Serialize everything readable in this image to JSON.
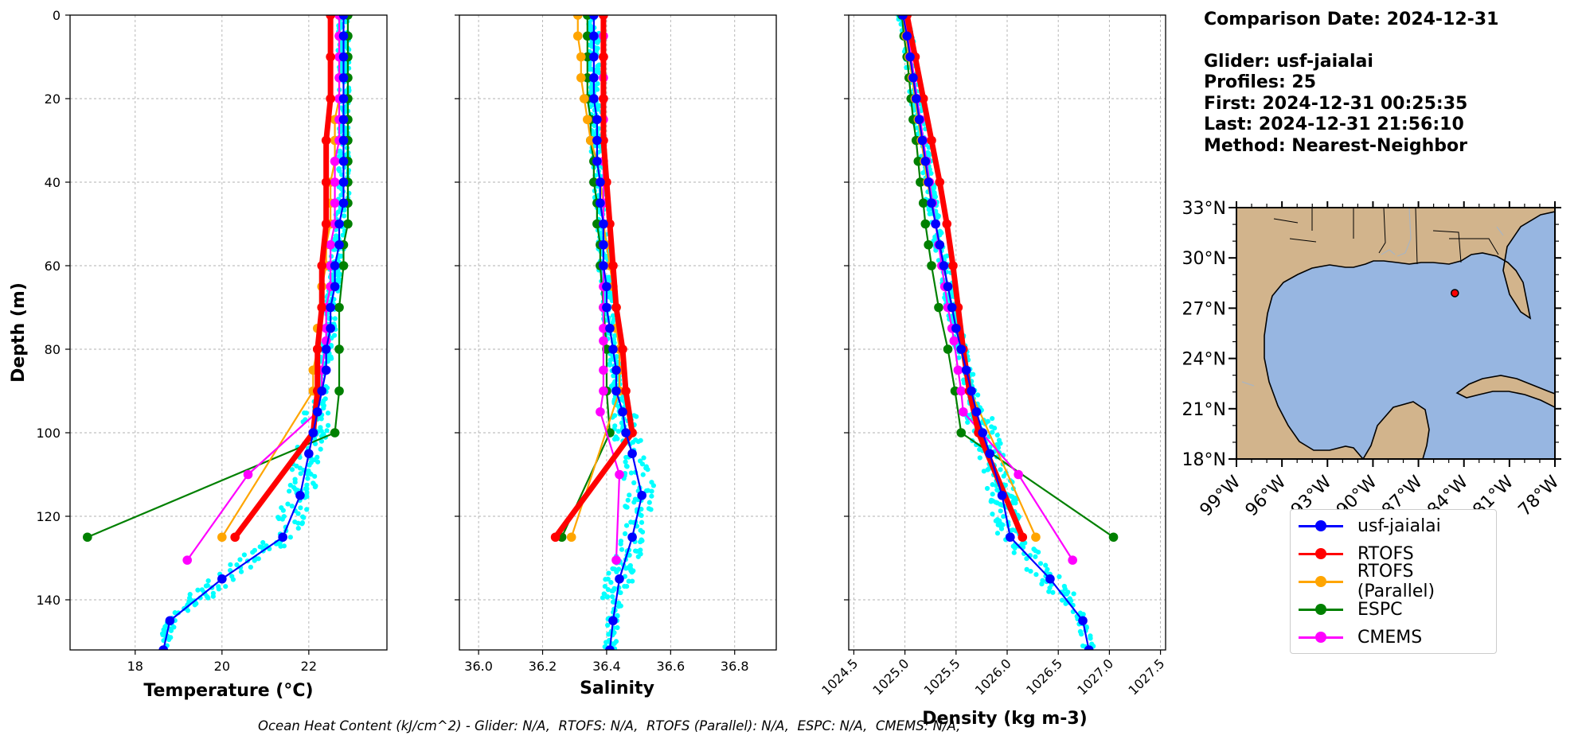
{
  "info": {
    "comparison_date": "Comparison Date: 2024-12-31",
    "glider": "Glider: usf-jaialai",
    "profiles": "Profiles: 25",
    "first": "First: 2024-12-31 00:25:35",
    "last": "Last: 2024-12-31 21:56:10",
    "method": "Method: Nearest-Neighbor"
  },
  "footnote": "Ocean Heat Content (kJ/cm^2) - Glider: N/A,  RTOFS: N/A,  RTOFS (Parallel): N/A,  ESPC: N/A,  CMEMS: N/A,",
  "colors": {
    "glider_scatter": "#00ffff",
    "usf-jaialai": "#0000ff",
    "RTOFS": "#ff0000",
    "RTOFS (Parallel)": "#ffa500",
    "ESPC": "#008000",
    "CMEMS": "#ff00ff",
    "ocean": "#97b6e1",
    "land": "#d2b48c",
    "grid": "#b0b0b0"
  },
  "legend": {
    "entries": [
      "usf-jaialai",
      "RTOFS",
      "RTOFS (Parallel)",
      "ESPC",
      "CMEMS"
    ]
  },
  "map": {
    "xticks": [
      "99°W",
      "96°W",
      "93°W",
      "90°W",
      "87°W",
      "84°W",
      "81°W",
      "78°W"
    ],
    "yticks": [
      "33°N",
      "30°N",
      "27°N",
      "24°N",
      "21°N",
      "18°N"
    ],
    "lon_range": [
      -99,
      -78
    ],
    "lat_range": [
      18,
      33
    ],
    "glider_position": {
      "lon": -84.6,
      "lat": 27.9
    }
  },
  "chart_data": [
    {
      "type": "line",
      "title": "",
      "xlabel": "Temperature (°C)",
      "ylabel": "Depth (m)",
      "xlim": [
        16.5,
        23.8
      ],
      "ylim": [
        152,
        0
      ],
      "xticks": [
        18,
        20,
        22
      ],
      "yticks": [
        0,
        20,
        40,
        60,
        80,
        100,
        120,
        140
      ],
      "grid": true,
      "series": [
        {
          "name": "usf-jaialai",
          "depth": [
            0,
            5,
            10,
            15,
            20,
            25,
            30,
            35,
            40,
            45,
            50,
            55,
            60,
            65,
            70,
            75,
            80,
            85,
            90,
            95,
            100,
            105,
            115,
            125,
            135,
            145,
            152
          ],
          "values": [
            22.8,
            22.8,
            22.8,
            22.8,
            22.8,
            22.8,
            22.8,
            22.8,
            22.8,
            22.8,
            22.7,
            22.7,
            22.6,
            22.6,
            22.5,
            22.5,
            22.4,
            22.4,
            22.3,
            22.2,
            22.1,
            22.0,
            21.8,
            21.4,
            20.0,
            18.8,
            18.65
          ]
        },
        {
          "name": "RTOFS",
          "depth": [
            0,
            10,
            20,
            30,
            40,
            50,
            60,
            70,
            80,
            90,
            100,
            125
          ],
          "values": [
            22.5,
            22.5,
            22.5,
            22.4,
            22.4,
            22.4,
            22.3,
            22.3,
            22.2,
            22.2,
            22.1,
            20.3
          ]
        },
        {
          "name": "RTOFS (Parallel)",
          "depth": [
            0,
            5,
            10,
            15,
            20,
            25,
            30,
            35,
            40,
            45,
            50,
            55,
            60,
            65,
            70,
            75,
            80,
            85,
            90,
            125
          ],
          "values": [
            22.7,
            22.7,
            22.7,
            22.7,
            22.7,
            22.6,
            22.6,
            22.6,
            22.5,
            22.5,
            22.5,
            22.4,
            22.4,
            22.3,
            22.3,
            22.2,
            22.2,
            22.1,
            22.1,
            20.0
          ]
        },
        {
          "name": "ESPC",
          "depth": [
            0,
            5,
            10,
            15,
            20,
            25,
            30,
            35,
            40,
            45,
            50,
            55,
            60,
            70,
            80,
            90,
            100,
            125
          ],
          "values": [
            22.9,
            22.9,
            22.9,
            22.9,
            22.9,
            22.9,
            22.9,
            22.9,
            22.9,
            22.9,
            22.9,
            22.8,
            22.8,
            22.7,
            22.7,
            22.7,
            22.6,
            16.9
          ]
        },
        {
          "name": "CMEMS",
          "depth": [
            0,
            5,
            10,
            15,
            20,
            25,
            30,
            35,
            40,
            45,
            50,
            55,
            60,
            65,
            70,
            75,
            78,
            85,
            90,
            95,
            110,
            130.5
          ],
          "values": [
            22.7,
            22.7,
            22.7,
            22.7,
            22.7,
            22.7,
            22.7,
            22.6,
            22.6,
            22.6,
            22.6,
            22.5,
            22.5,
            22.5,
            22.4,
            22.4,
            22.4,
            22.3,
            22.3,
            22.2,
            20.6,
            19.2
          ]
        }
      ]
    },
    {
      "type": "line",
      "title": "",
      "xlabel": "Salinity",
      "ylabel": "",
      "xlim": [
        35.94,
        36.93
      ],
      "ylim": [
        152,
        0
      ],
      "xticks": [
        36.0,
        36.2,
        36.4,
        36.6,
        36.8
      ],
      "yticks": [
        0,
        20,
        40,
        60,
        80,
        100,
        120,
        140
      ],
      "grid": true,
      "series": [
        {
          "name": "usf-jaialai",
          "depth": [
            0,
            5,
            10,
            15,
            20,
            25,
            30,
            35,
            40,
            45,
            50,
            55,
            60,
            65,
            70,
            75,
            80,
            85,
            90,
            95,
            100,
            105,
            115,
            125,
            135,
            145,
            152
          ],
          "values": [
            36.36,
            36.36,
            36.36,
            36.36,
            36.36,
            36.37,
            36.37,
            36.37,
            36.38,
            36.38,
            36.39,
            36.39,
            36.39,
            36.4,
            36.4,
            36.41,
            36.42,
            36.43,
            36.43,
            36.45,
            36.46,
            36.48,
            36.51,
            36.48,
            36.44,
            36.42,
            36.41
          ]
        },
        {
          "name": "RTOFS",
          "depth": [
            0,
            10,
            20,
            30,
            40,
            50,
            60,
            70,
            80,
            90,
            100,
            125
          ],
          "values": [
            36.39,
            36.39,
            36.39,
            36.39,
            36.4,
            36.41,
            36.42,
            36.43,
            36.45,
            36.46,
            36.48,
            36.24
          ]
        },
        {
          "name": "RTOFS (Parallel)",
          "depth": [
            0,
            5,
            10,
            15,
            20,
            25,
            30,
            35,
            40,
            45,
            50,
            55,
            60,
            65,
            70,
            75,
            80,
            85,
            90,
            125
          ],
          "values": [
            36.31,
            36.31,
            36.32,
            36.32,
            36.33,
            36.34,
            36.35,
            36.37,
            36.38,
            36.39,
            36.39,
            36.4,
            36.41,
            36.42,
            36.43,
            36.43,
            36.44,
            36.44,
            36.44,
            36.29
          ]
        },
        {
          "name": "ESPC",
          "depth": [
            0,
            5,
            10,
            15,
            20,
            25,
            30,
            35,
            40,
            45,
            50,
            55,
            60,
            70,
            80,
            90,
            100,
            125
          ],
          "values": [
            36.34,
            36.34,
            36.34,
            36.34,
            36.34,
            36.35,
            36.35,
            36.36,
            36.36,
            36.37,
            36.37,
            36.38,
            36.38,
            36.39,
            36.4,
            36.4,
            36.41,
            36.26
          ]
        },
        {
          "name": "CMEMS",
          "depth": [
            0,
            5,
            10,
            15,
            20,
            25,
            30,
            35,
            40,
            45,
            50,
            55,
            60,
            65,
            70,
            75,
            78,
            85,
            90,
            95,
            110,
            130.5
          ],
          "values": [
            36.39,
            36.39,
            36.39,
            36.39,
            36.39,
            36.39,
            36.39,
            36.39,
            36.39,
            36.39,
            36.39,
            36.39,
            36.39,
            36.39,
            36.39,
            36.39,
            36.39,
            36.39,
            36.39,
            36.38,
            36.44,
            36.43
          ]
        }
      ]
    },
    {
      "type": "line",
      "title": "",
      "xlabel": "Density (kg m-3)",
      "ylabel": "",
      "xlim": [
        1024.45,
        1027.55
      ],
      "ylim": [
        152,
        0
      ],
      "xticks": [
        1024.5,
        1025.0,
        1025.5,
        1026.0,
        1026.5,
        1027.0,
        1027.5
      ],
      "yticks": [
        0,
        20,
        40,
        60,
        80,
        100,
        120,
        140
      ],
      "grid": true,
      "series": [
        {
          "name": "usf-jaialai",
          "depth": [
            0,
            5,
            10,
            15,
            20,
            25,
            30,
            35,
            40,
            45,
            50,
            55,
            60,
            65,
            70,
            75,
            80,
            85,
            90,
            95,
            100,
            105,
            115,
            125,
            135,
            145,
            152
          ],
          "values": [
            1024.98,
            1025.02,
            1025.05,
            1025.08,
            1025.11,
            1025.14,
            1025.17,
            1025.2,
            1025.23,
            1025.26,
            1025.3,
            1025.34,
            1025.38,
            1025.42,
            1025.46,
            1025.5,
            1025.55,
            1025.6,
            1025.65,
            1025.7,
            1025.76,
            1025.83,
            1025.95,
            1026.03,
            1026.42,
            1026.74,
            1026.8
          ]
        },
        {
          "name": "RTOFS",
          "depth": [
            0,
            10,
            20,
            30,
            40,
            50,
            60,
            70,
            80,
            90,
            100,
            125
          ],
          "values": [
            1025.02,
            1025.1,
            1025.18,
            1025.26,
            1025.34,
            1025.41,
            1025.47,
            1025.52,
            1025.57,
            1025.63,
            1025.72,
            1026.15
          ]
        },
        {
          "name": "RTOFS (Parallel)",
          "depth": [
            0,
            5,
            10,
            15,
            20,
            25,
            30,
            35,
            40,
            45,
            50,
            55,
            60,
            65,
            70,
            75,
            80,
            85,
            90,
            125
          ],
          "values": [
            1024.98,
            1025.01,
            1025.04,
            1025.07,
            1025.1,
            1025.13,
            1025.16,
            1025.19,
            1025.22,
            1025.26,
            1025.3,
            1025.34,
            1025.38,
            1025.42,
            1025.46,
            1025.5,
            1025.55,
            1025.6,
            1025.64,
            1026.28
          ]
        },
        {
          "name": "ESPC",
          "depth": [
            0,
            5,
            10,
            15,
            20,
            25,
            30,
            35,
            40,
            45,
            50,
            55,
            60,
            70,
            80,
            90,
            100,
            125
          ],
          "values": [
            1024.97,
            1024.99,
            1025.02,
            1025.04,
            1025.06,
            1025.08,
            1025.11,
            1025.13,
            1025.15,
            1025.18,
            1025.2,
            1025.23,
            1025.26,
            1025.33,
            1025.42,
            1025.49,
            1025.55,
            1027.04
          ]
        },
        {
          "name": "CMEMS",
          "depth": [
            0,
            5,
            10,
            15,
            20,
            25,
            30,
            35,
            40,
            45,
            50,
            55,
            60,
            65,
            70,
            75,
            78,
            85,
            90,
            95,
            110,
            130.5
          ],
          "values": [
            1025.0,
            1025.03,
            1025.06,
            1025.09,
            1025.12,
            1025.15,
            1025.18,
            1025.21,
            1025.24,
            1025.27,
            1025.3,
            1025.33,
            1025.36,
            1025.39,
            1025.42,
            1025.46,
            1025.48,
            1025.52,
            1025.55,
            1025.57,
            1026.11,
            1026.64
          ]
        }
      ]
    }
  ]
}
